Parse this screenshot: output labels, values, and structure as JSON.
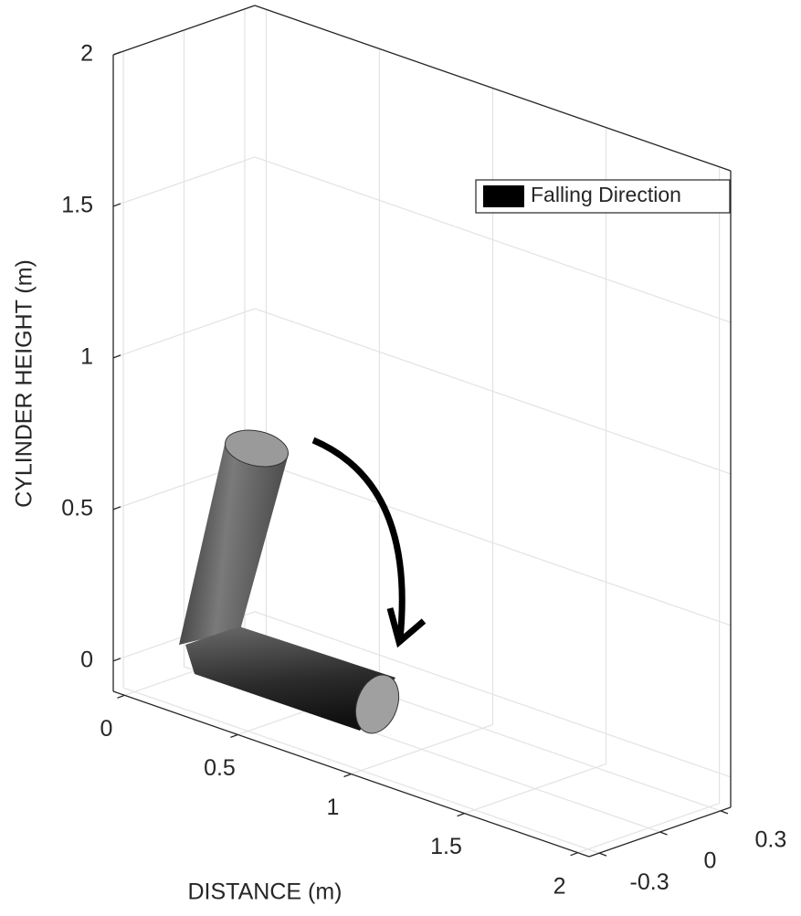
{
  "chart_data": {
    "type": "3d",
    "xlabel": "DISTANCE (m)",
    "zlabel": "CYLINDER HEIGHT (m)",
    "xlim": [
      -0.05,
      2.05
    ],
    "xticks": [
      0,
      0.5,
      1,
      1.5,
      2
    ],
    "ylim": [
      -0.35,
      0.35
    ],
    "yticks": [
      -0.3,
      0,
      0.3
    ],
    "zlim": [
      -0.1,
      2
    ],
    "zticks": [
      0,
      0.5,
      1,
      1.5,
      2
    ],
    "grid": true,
    "legend": {
      "location": "northeast",
      "entries": [
        {
          "name": "Falling Direction",
          "color": "#000000"
        }
      ]
    }
  }
}
